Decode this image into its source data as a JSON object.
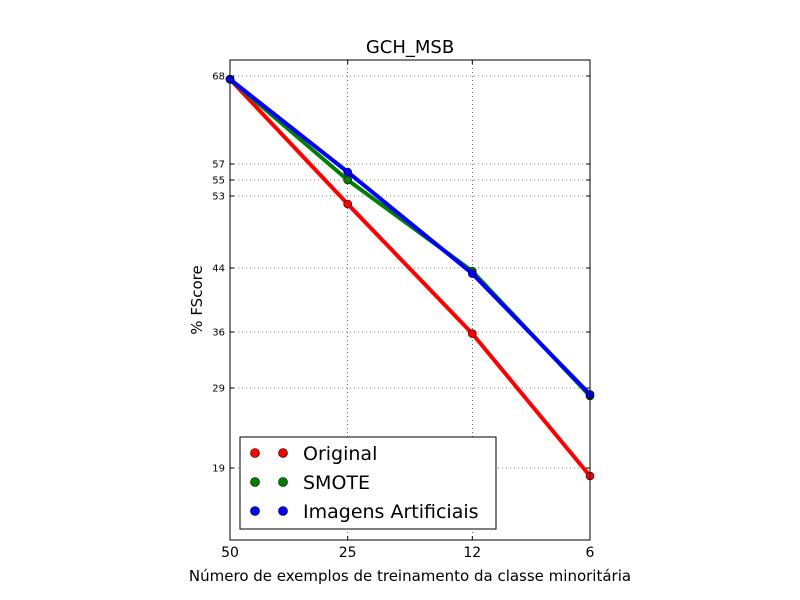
{
  "chart_data": {
    "type": "line",
    "title": "GCH_MSB",
    "xlabel": "Número de exemplos de treinamento da classe minoritária",
    "ylabel": "% FScore",
    "x": [
      50,
      25,
      12,
      6
    ],
    "x_tick_labels": [
      "50",
      "25",
      "12",
      "6"
    ],
    "xlim": [
      50,
      6
    ],
    "y_ticks": [
      68,
      57,
      55,
      53,
      44,
      36,
      29,
      19
    ],
    "y_tick_labels": [
      "68",
      "57",
      "55",
      "53",
      "44",
      "36",
      "29",
      "19"
    ],
    "ylim": [
      10,
      70
    ],
    "grid": true,
    "legend_position": "lower-left",
    "series": [
      {
        "name": "Original",
        "color": "#ff0000",
        "values": [
          67.6,
          52.0,
          35.8,
          18.0
        ]
      },
      {
        "name": "SMOTE",
        "color": "#007f00",
        "values": [
          67.6,
          55.0,
          43.6,
          28.0
        ]
      },
      {
        "name": "Imagens Artificiais",
        "color": "#0000ff",
        "values": [
          67.6,
          56.0,
          43.3,
          28.2
        ]
      }
    ]
  }
}
